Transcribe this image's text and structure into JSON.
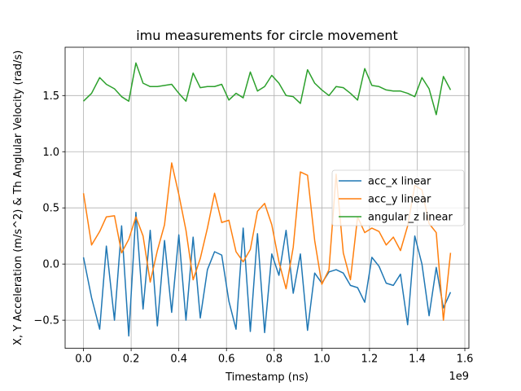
{
  "chart_data": {
    "type": "line",
    "title": "imu measurements for circle movement",
    "xlabel": "Timestamp (ns)",
    "ylabel": "X, Y Acceleration (m/s^2) & Th Anglular Velocity (rad/s)",
    "x_offset_label": "1e9",
    "xlim": [
      -0.077,
      1.617
    ],
    "ylim": [
      -0.75,
      1.93
    ],
    "x_ticks": [
      {
        "value": 0.0,
        "label": "0.0"
      },
      {
        "value": 0.2,
        "label": "0.2"
      },
      {
        "value": 0.4,
        "label": "0.4"
      },
      {
        "value": 0.6,
        "label": "0.6"
      },
      {
        "value": 0.8,
        "label": "0.8"
      },
      {
        "value": 1.0,
        "label": "1.0"
      },
      {
        "value": 1.2,
        "label": "1.2"
      },
      {
        "value": 1.4,
        "label": "1.4"
      },
      {
        "value": 1.6,
        "label": "1.6"
      }
    ],
    "y_ticks": [
      {
        "value": -0.5,
        "label": "−0.5"
      },
      {
        "value": 0.0,
        "label": "0.0"
      },
      {
        "value": 0.5,
        "label": "0.5"
      },
      {
        "value": 1.0,
        "label": "1.0"
      },
      {
        "value": 1.5,
        "label": "1.5"
      }
    ],
    "grid": true,
    "legend_position": "center-right",
    "x": [
      0.0,
      0.034,
      0.068,
      0.096,
      0.13,
      0.16,
      0.19,
      0.22,
      0.25,
      0.28,
      0.31,
      0.34,
      0.37,
      0.4,
      0.43,
      0.46,
      0.49,
      0.52,
      0.55,
      0.58,
      0.61,
      0.64,
      0.67,
      0.7,
      0.73,
      0.76,
      0.79,
      0.82,
      0.85,
      0.88,
      0.91,
      0.94,
      0.97,
      1.0,
      1.03,
      1.06,
      1.09,
      1.12,
      1.15,
      1.18,
      1.21,
      1.24,
      1.27,
      1.3,
      1.33,
      1.36,
      1.39,
      1.42,
      1.45,
      1.48,
      1.51,
      1.54
    ],
    "series": [
      {
        "name": "acc_x linear",
        "color": "#1f77b4",
        "values": [
          0.06,
          -0.3,
          -0.58,
          0.16,
          -0.5,
          0.34,
          -0.64,
          0.46,
          -0.4,
          0.3,
          -0.55,
          0.21,
          -0.43,
          0.26,
          -0.5,
          0.24,
          -0.48,
          -0.05,
          0.11,
          0.08,
          -0.33,
          -0.58,
          0.32,
          -0.6,
          0.27,
          -0.61,
          0.09,
          -0.1,
          0.3,
          -0.26,
          0.09,
          -0.59,
          -0.08,
          -0.17,
          -0.07,
          -0.05,
          -0.08,
          -0.19,
          -0.21,
          -0.34,
          0.06,
          -0.02,
          -0.17,
          -0.19,
          -0.09,
          -0.54,
          0.25,
          0.0,
          -0.46,
          -0.03,
          -0.39,
          -0.25
        ]
      },
      {
        "name": "acc_y linear",
        "color": "#ff7f0e",
        "values": [
          0.63,
          0.17,
          0.29,
          0.42,
          0.43,
          0.1,
          0.22,
          0.42,
          0.25,
          -0.16,
          0.12,
          0.35,
          0.9,
          0.62,
          0.3,
          -0.14,
          0.05,
          0.32,
          0.63,
          0.37,
          0.39,
          0.11,
          0.02,
          0.13,
          0.47,
          0.54,
          0.35,
          0.02,
          -0.22,
          0.15,
          0.82,
          0.79,
          0.21,
          -0.18,
          -0.05,
          0.8,
          0.1,
          -0.14,
          0.42,
          0.28,
          0.32,
          0.29,
          0.17,
          0.24,
          0.12,
          0.34,
          0.7,
          0.66,
          0.36,
          0.28,
          -0.5,
          0.1
        ]
      },
      {
        "name": "angular_z linear",
        "color": "#2ca02c",
        "values": [
          1.45,
          1.52,
          1.66,
          1.6,
          1.56,
          1.49,
          1.45,
          1.79,
          1.61,
          1.58,
          1.58,
          1.59,
          1.6,
          1.52,
          1.45,
          1.7,
          1.57,
          1.58,
          1.58,
          1.6,
          1.46,
          1.52,
          1.48,
          1.71,
          1.54,
          1.58,
          1.68,
          1.61,
          1.5,
          1.49,
          1.43,
          1.73,
          1.61,
          1.55,
          1.5,
          1.58,
          1.57,
          1.52,
          1.46,
          1.74,
          1.59,
          1.58,
          1.55,
          1.54,
          1.54,
          1.52,
          1.49,
          1.66,
          1.56,
          1.33,
          1.67,
          1.55
        ]
      }
    ]
  }
}
